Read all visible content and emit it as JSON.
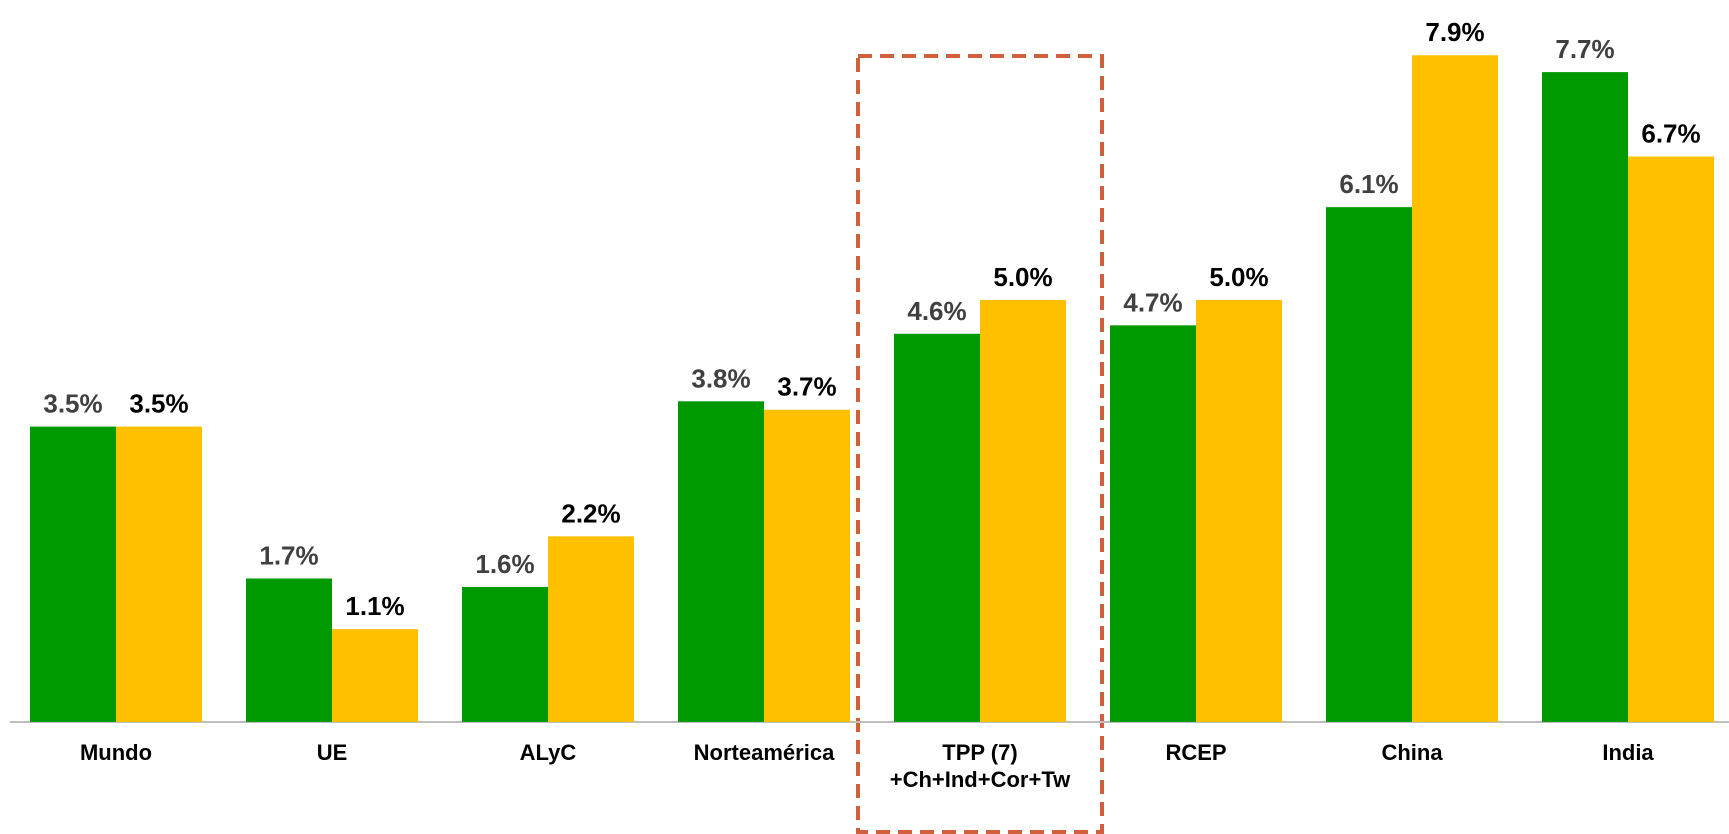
{
  "colors": {
    "series_green": "#009900",
    "series_yellow": "#FFC000",
    "highlight_box": "#D0603C",
    "axis": "#BFBFBF"
  },
  "chart_data": {
    "type": "bar",
    "categories": [
      [
        "Mundo"
      ],
      [
        "UE"
      ],
      [
        "ALyC"
      ],
      [
        "Norteamérica"
      ],
      [
        "TPP (7)",
        "+Ch+Ind+Cor+Tw"
      ],
      [
        "RCEP"
      ],
      [
        "China"
      ],
      [
        "India"
      ]
    ],
    "series": [
      {
        "color": "#009900",
        "values": [
          3.5,
          1.7,
          1.6,
          3.8,
          4.6,
          4.7,
          6.1,
          7.7
        ],
        "labels": [
          "3.5%",
          "1.7%",
          "1.6%",
          "3.8%",
          "4.6%",
          "4.7%",
          "6.1%",
          "7.7%"
        ]
      },
      {
        "color": "#FFC000",
        "values": [
          3.5,
          1.1,
          2.2,
          3.7,
          5.0,
          5.0,
          7.9,
          6.7
        ],
        "labels": [
          "3.5%",
          "1.1%",
          "2.2%",
          "3.7%",
          "5.0%",
          "5.0%",
          "7.9%",
          "6.7%"
        ]
      }
    ],
    "highlighted_category": 4,
    "highlight_style": "dashed box",
    "ylim": [
      0,
      8
    ],
    "grid": false,
    "title": "",
    "xlabel": "",
    "ylabel": ""
  }
}
